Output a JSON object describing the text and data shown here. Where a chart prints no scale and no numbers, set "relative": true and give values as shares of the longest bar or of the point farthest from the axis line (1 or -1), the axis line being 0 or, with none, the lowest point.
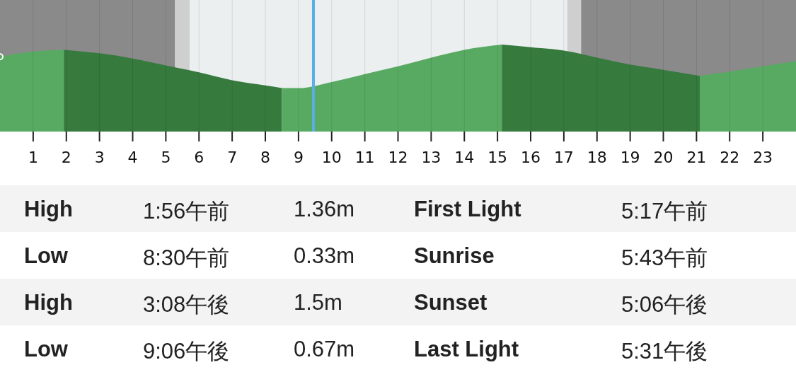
{
  "chart_data": {
    "type": "area",
    "relative": true,
    "xlim": [
      0,
      24
    ],
    "xticks": [
      1,
      2,
      3,
      4,
      5,
      6,
      7,
      8,
      9,
      10,
      11,
      12,
      13,
      14,
      15,
      16,
      17,
      18,
      19,
      20,
      21,
      22,
      23
    ],
    "grid": "x",
    "tick_labels": "x",
    "series": [
      {
        "color": "#58aa62",
        "x": [
          0,
          1,
          1.93
        ],
        "values": [
          0.86,
          0.92,
          0.94
        ]
      },
      {
        "color": "#367a3e",
        "x": [
          1.93,
          3,
          4,
          5,
          6,
          7,
          8,
          8.5
        ],
        "values": [
          0.94,
          0.9,
          0.84,
          0.76,
          0.68,
          0.59,
          0.53,
          0.5
        ]
      },
      {
        "color": "#58aa62",
        "x": [
          8.5,
          9,
          10,
          11,
          12,
          13,
          14,
          15.13
        ],
        "values": [
          0.5,
          0.5,
          0.57,
          0.66,
          0.75,
          0.85,
          0.94,
          1
        ]
      },
      {
        "color": "#367a3e",
        "x": [
          15.13,
          16,
          17,
          18,
          19,
          20,
          21.1
        ],
        "values": [
          1,
          0.97,
          0.93,
          0.85,
          0.77,
          0.71,
          0.64
        ]
      },
      {
        "color": "#58aa62",
        "x": [
          21.1,
          22,
          23,
          24
        ],
        "values": [
          0.64,
          0.69,
          0.75,
          0.81
        ]
      }
    ],
    "bands": [
      {
        "axis": "x",
        "from": 0,
        "to": 5.28,
        "color": "#8a8a8a"
      },
      {
        "axis": "x",
        "from": 5.28,
        "to": 5.72,
        "color": "#cfcfcf"
      },
      {
        "axis": "x",
        "from": 5.72,
        "to": 17.1,
        "color": "#eceff0"
      },
      {
        "axis": "x",
        "from": 17.1,
        "to": 17.52,
        "color": "#cfcfcf"
      },
      {
        "axis": "x",
        "from": 17.52,
        "to": 24,
        "color": "#8a8a8a"
      }
    ],
    "ref_lines": [
      {
        "axis": "x",
        "value": 9.45,
        "color": "#5aaee0"
      }
    ],
    "annotations": [
      "High",
      "1:56午前",
      "1.36m",
      "First Light",
      "5:17午前",
      "Low",
      "8:30午前",
      "0.33m",
      "Sunrise",
      "5:43午前",
      "High",
      "3:08午後",
      "1.5m",
      "Sunset",
      "5:06午後",
      "Low",
      "9:06午後",
      "0.67m",
      "Last Light",
      "5:31午後"
    ]
  }
}
